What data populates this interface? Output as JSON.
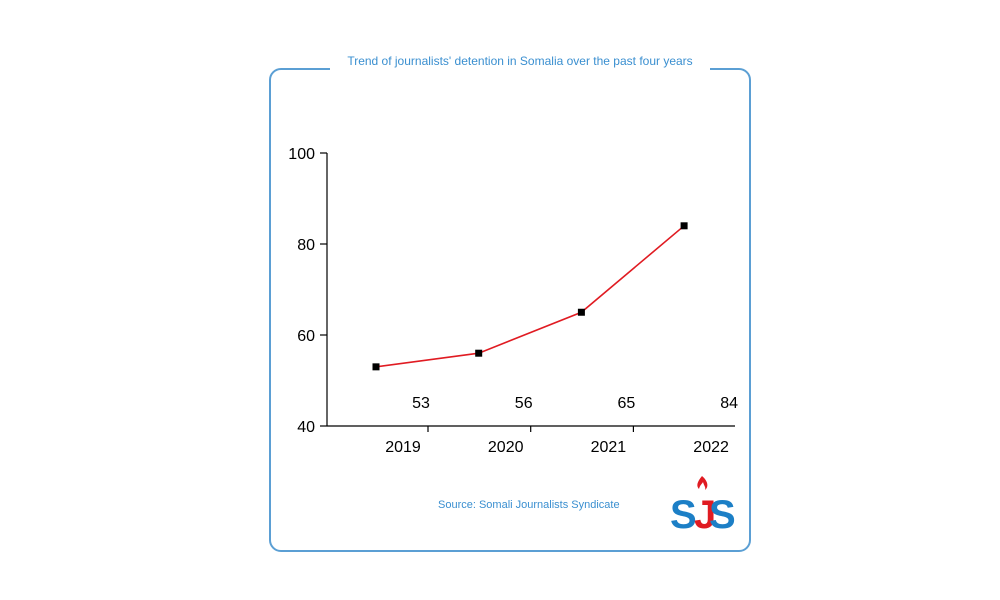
{
  "chart_data": {
    "type": "line",
    "title": "Trend of journalists' detention in Somalia over the past four years",
    "categories": [
      "2019",
      "2020",
      "2021",
      "2022"
    ],
    "series": [
      {
        "values": [
          53,
          56,
          65,
          84
        ]
      }
    ],
    "data_labels": [
      "53",
      "56",
      "65",
      "84"
    ],
    "yticks": [
      40,
      60,
      80,
      100
    ],
    "ylim": [
      40,
      100
    ],
    "grid": false,
    "line_color": "#e01b22",
    "marker_color": "#000000"
  },
  "source": "Source: Somali Journalists Syndicate",
  "logo": {
    "text": "SJS",
    "icon": "flame-icon",
    "color_blue": "#1c7fc6",
    "color_red": "#e01b22"
  },
  "colors": {
    "accent": "#3a8fd0",
    "frame": "#5b9fd4"
  }
}
